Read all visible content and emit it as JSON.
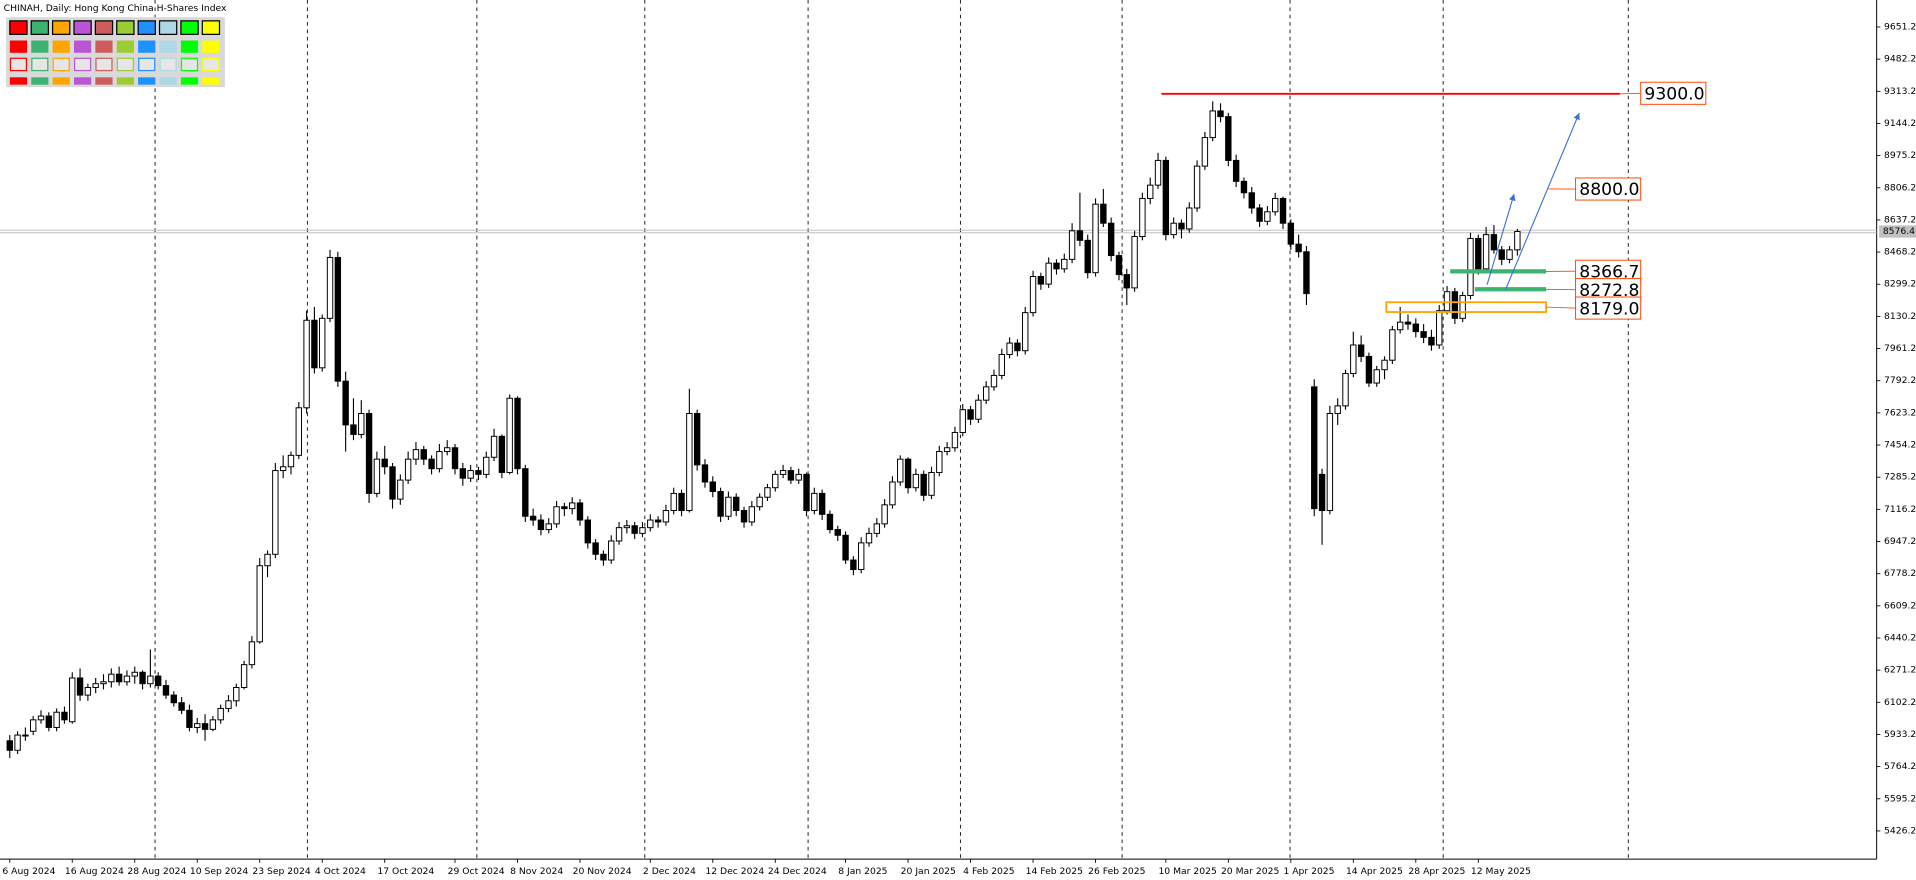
{
  "chart_data": {
    "type": "candlestick",
    "title": "CHINAH, Daily:  Hong Kong China H-Shares Index",
    "color_up": "#ffffff",
    "color_down": "#000000",
    "xlim": [
      -1.25,
      239
    ],
    "ylim": [
      5278,
      9793
    ],
    "yticks": [
      5426.2,
      5595.2,
      5764.2,
      5933.2,
      6102.2,
      6271.2,
      6440.2,
      6609.2,
      6778.2,
      6947.2,
      7116.2,
      7285.2,
      7454.2,
      7623.2,
      7792.2,
      7961.2,
      8130.2,
      8299.2,
      8468.2,
      8637.2,
      8806.2,
      8975.2,
      9144.2,
      9313.2,
      9482.2,
      9651.2
    ],
    "xticks": [
      {
        "value": 0,
        "label": "6 Aug 2024"
      },
      {
        "value": 8,
        "label": "16 Aug 2024"
      },
      {
        "value": 16,
        "label": "28 Aug 2024"
      },
      {
        "value": 24,
        "label": "10 Sep 2024"
      },
      {
        "value": 32,
        "label": "23 Sep 2024"
      },
      {
        "value": 40,
        "label": "4 Oct 2024"
      },
      {
        "value": 48,
        "label": "17 Oct 2024"
      },
      {
        "value": 57,
        "label": "29 Oct 2024"
      },
      {
        "value": 65,
        "label": "8 Nov 2024"
      },
      {
        "value": 73,
        "label": "20 Nov 2024"
      },
      {
        "value": 82,
        "label": "2 Dec 2024"
      },
      {
        "value": 90,
        "label": "12 Dec 2024"
      },
      {
        "value": 98,
        "label": "24 Dec 2024"
      },
      {
        "value": 107,
        "label": "8 Jan 2025"
      },
      {
        "value": 115,
        "label": "20 Jan 2025"
      },
      {
        "value": 123,
        "label": "4 Feb 2025"
      },
      {
        "value": 131,
        "label": "14 Feb 2025"
      },
      {
        "value": 139,
        "label": "26 Feb 2025"
      },
      {
        "value": 148,
        "label": "10 Mar 2025"
      },
      {
        "value": 156,
        "label": "20 Mar 2025"
      },
      {
        "value": 164,
        "label": "1 Apr 2025"
      },
      {
        "value": 172,
        "label": "14 Apr 2025"
      },
      {
        "value": 180,
        "label": "28 Apr 2025"
      },
      {
        "value": 188,
        "label": "12 May 2025"
      }
    ],
    "separators": [
      18.6,
      38.1,
      59.8,
      81.3,
      102.2,
      121.7,
      142.4,
      163.9,
      183.5,
      207.2
    ],
    "levels": [
      {
        "value": 9300,
        "label": "9300.0",
        "color": "#ff0000",
        "style": "line"
      },
      {
        "value": 8800,
        "label": "8800.0",
        "color": "#ff0000",
        "style": "label"
      },
      {
        "value": 8366.7,
        "label": "8366.7",
        "color": "#3cb371",
        "style": "line"
      },
      {
        "value": 8272.8,
        "label": "8272.8",
        "color": "#3cb371",
        "style": "line"
      },
      {
        "value": 8179,
        "label": "8179.0",
        "color": "#ffa500",
        "style": "band"
      }
    ],
    "ohlc": [
      [
        5900,
        5930,
        5810,
        5850
      ],
      [
        5850,
        5950,
        5830,
        5930
      ],
      [
        5930,
        5970,
        5900,
        5930
      ],
      [
        5950,
        6030,
        5930,
        6010
      ],
      [
        6010,
        6060,
        5990,
        6030
      ],
      [
        6030,
        6050,
        5950,
        5970
      ],
      [
        5970,
        6070,
        5950,
        6050
      ],
      [
        6050,
        6080,
        5990,
        6010
      ],
      [
        6000,
        6260,
        5990,
        6230
      ],
      [
        6230,
        6280,
        6110,
        6140
      ],
      [
        6140,
        6200,
        6110,
        6180
      ],
      [
        6180,
        6230,
        6150,
        6200
      ],
      [
        6200,
        6250,
        6170,
        6210
      ],
      [
        6210,
        6280,
        6180,
        6250
      ],
      [
        6250,
        6290,
        6190,
        6210
      ],
      [
        6210,
        6270,
        6190,
        6240
      ],
      [
        6240,
        6290,
        6200,
        6260
      ],
      [
        6260,
        6270,
        6170,
        6200
      ],
      [
        6200,
        6380,
        6180,
        6240
      ],
      [
        6240,
        6260,
        6170,
        6190
      ],
      [
        6190,
        6220,
        6120,
        6140
      ],
      [
        6140,
        6160,
        6080,
        6100
      ],
      [
        6100,
        6130,
        6040,
        6060
      ],
      [
        6060,
        6090,
        5950,
        5970
      ],
      [
        5970,
        6020,
        5940,
        5990
      ],
      [
        5990,
        6040,
        5900,
        5960
      ],
      [
        5960,
        6030,
        5950,
        6010
      ],
      [
        6010,
        6090,
        5990,
        6070
      ],
      [
        6070,
        6140,
        6050,
        6110
      ],
      [
        6110,
        6200,
        6080,
        6180
      ],
      [
        6180,
        6320,
        6170,
        6300
      ],
      [
        6300,
        6450,
        6280,
        6420
      ],
      [
        6420,
        6860,
        6410,
        6820
      ],
      [
        6820,
        6900,
        6760,
        6880
      ],
      [
        6880,
        7360,
        6860,
        7320
      ],
      [
        7320,
        7400,
        7280,
        7340
      ],
      [
        7340,
        7420,
        7300,
        7400
      ],
      [
        7400,
        7680,
        7380,
        7650
      ],
      [
        7650,
        8160,
        7620,
        8110
      ],
      [
        8110,
        8180,
        7830,
        7860
      ],
      [
        7860,
        8140,
        7840,
        8120
      ],
      [
        8120,
        8480,
        8100,
        8440
      ],
      [
        8440,
        8470,
        7760,
        7790
      ],
      [
        7790,
        7840,
        7420,
        7560
      ],
      [
        7560,
        7700,
        7480,
        7510
      ],
      [
        7510,
        7690,
        7490,
        7620
      ],
      [
        7620,
        7640,
        7150,
        7200
      ],
      [
        7200,
        7420,
        7180,
        7380
      ],
      [
        7380,
        7450,
        7300,
        7340
      ],
      [
        7340,
        7360,
        7120,
        7170
      ],
      [
        7170,
        7300,
        7140,
        7270
      ],
      [
        7270,
        7420,
        7250,
        7380
      ],
      [
        7380,
        7470,
        7350,
        7430
      ],
      [
        7430,
        7450,
        7350,
        7380
      ],
      [
        7380,
        7400,
        7300,
        7330
      ],
      [
        7330,
        7460,
        7310,
        7420
      ],
      [
        7420,
        7480,
        7400,
        7440
      ],
      [
        7440,
        7460,
        7300,
        7330
      ],
      [
        7330,
        7360,
        7240,
        7280
      ],
      [
        7280,
        7350,
        7260,
        7320
      ],
      [
        7320,
        7340,
        7270,
        7300
      ],
      [
        7300,
        7420,
        7280,
        7390
      ],
      [
        7390,
        7540,
        7370,
        7500
      ],
      [
        7500,
        7510,
        7280,
        7310
      ],
      [
        7310,
        7720,
        7300,
        7700
      ],
      [
        7700,
        7710,
        7300,
        7330
      ],
      [
        7330,
        7350,
        7050,
        7080
      ],
      [
        7080,
        7120,
        7030,
        7060
      ],
      [
        7060,
        7090,
        6980,
        7010
      ],
      [
        7010,
        7070,
        6990,
        7040
      ],
      [
        7040,
        7160,
        7020,
        7130
      ],
      [
        7130,
        7150,
        7080,
        7120
      ],
      [
        7120,
        7180,
        7090,
        7150
      ],
      [
        7150,
        7170,
        7030,
        7060
      ],
      [
        7060,
        7080,
        6910,
        6940
      ],
      [
        6940,
        6960,
        6850,
        6880
      ],
      [
        6880,
        6900,
        6820,
        6850
      ],
      [
        6850,
        6980,
        6830,
        6950
      ],
      [
        6950,
        7050,
        6930,
        7020
      ],
      [
        7020,
        7060,
        6990,
        7030
      ],
      [
        7030,
        7050,
        6960,
        6990
      ],
      [
        6990,
        7050,
        6970,
        7020
      ],
      [
        7020,
        7090,
        7000,
        7060
      ],
      [
        7060,
        7080,
        7020,
        7050
      ],
      [
        7050,
        7140,
        7030,
        7110
      ],
      [
        7110,
        7230,
        7090,
        7200
      ],
      [
        7200,
        7220,
        7080,
        7110
      ],
      [
        7110,
        7750,
        7100,
        7620
      ],
      [
        7620,
        7640,
        7320,
        7350
      ],
      [
        7350,
        7380,
        7230,
        7260
      ],
      [
        7260,
        7290,
        7180,
        7210
      ],
      [
        7210,
        7230,
        7050,
        7080
      ],
      [
        7080,
        7210,
        7060,
        7180
      ],
      [
        7180,
        7200,
        7080,
        7110
      ],
      [
        7110,
        7130,
        7020,
        7050
      ],
      [
        7050,
        7160,
        7030,
        7130
      ],
      [
        7130,
        7200,
        7110,
        7180
      ],
      [
        7180,
        7250,
        7160,
        7230
      ],
      [
        7230,
        7320,
        7210,
        7300
      ],
      [
        7300,
        7350,
        7280,
        7320
      ],
      [
        7320,
        7340,
        7250,
        7270
      ],
      [
        7270,
        7330,
        7250,
        7300
      ],
      [
        7300,
        7310,
        7080,
        7110
      ],
      [
        7110,
        7230,
        7090,
        7200
      ],
      [
        7200,
        7220,
        7060,
        7090
      ],
      [
        7090,
        7110,
        6990,
        7010
      ],
      [
        7010,
        7030,
        6950,
        6980
      ],
      [
        6980,
        7000,
        6830,
        6850
      ],
      [
        6850,
        6870,
        6770,
        6800
      ],
      [
        6800,
        6970,
        6780,
        6940
      ],
      [
        6940,
        7020,
        6920,
        6990
      ],
      [
        6990,
        7070,
        6970,
        7040
      ],
      [
        7040,
        7170,
        7020,
        7140
      ],
      [
        7140,
        7290,
        7120,
        7260
      ],
      [
        7260,
        7400,
        7240,
        7380
      ],
      [
        7380,
        7390,
        7200,
        7230
      ],
      [
        7230,
        7330,
        7210,
        7300
      ],
      [
        7300,
        7320,
        7160,
        7190
      ],
      [
        7190,
        7340,
        7170,
        7310
      ],
      [
        7310,
        7450,
        7290,
        7420
      ],
      [
        7420,
        7470,
        7400,
        7440
      ],
      [
        7440,
        7550,
        7420,
        7520
      ],
      [
        7520,
        7670,
        7500,
        7640
      ],
      [
        7640,
        7660,
        7560,
        7590
      ],
      [
        7590,
        7720,
        7570,
        7690
      ],
      [
        7690,
        7790,
        7670,
        7760
      ],
      [
        7760,
        7850,
        7740,
        7820
      ],
      [
        7820,
        7960,
        7800,
        7930
      ],
      [
        7930,
        8020,
        7910,
        7990
      ],
      [
        7990,
        8010,
        7920,
        7950
      ],
      [
        7950,
        8180,
        7930,
        8150
      ],
      [
        8150,
        8370,
        8130,
        8340
      ],
      [
        8340,
        8360,
        8270,
        8300
      ],
      [
        8300,
        8440,
        8280,
        8410
      ],
      [
        8410,
        8430,
        8350,
        8380
      ],
      [
        8380,
        8460,
        8360,
        8430
      ],
      [
        8430,
        8620,
        8410,
        8580
      ],
      [
        8580,
        8780,
        8500,
        8530
      ],
      [
        8530,
        8560,
        8330,
        8360
      ],
      [
        8360,
        8750,
        8340,
        8720
      ],
      [
        8720,
        8800,
        8600,
        8620
      ],
      [
        8620,
        8650,
        8420,
        8450
      ],
      [
        8450,
        8470,
        8320,
        8350
      ],
      [
        8350,
        8380,
        8190,
        8280
      ],
      [
        8280,
        8580,
        8260,
        8550
      ],
      [
        8550,
        8780,
        8530,
        8750
      ],
      [
        8750,
        8860,
        8720,
        8820
      ],
      [
        8820,
        8990,
        8800,
        8950
      ],
      [
        8950,
        8970,
        8530,
        8560
      ],
      [
        8560,
        8650,
        8540,
        8620
      ],
      [
        8620,
        8640,
        8540,
        8590
      ],
      [
        8590,
        8730,
        8570,
        8700
      ],
      [
        8700,
        8950,
        8680,
        8920
      ],
      [
        8920,
        9100,
        8900,
        9070
      ],
      [
        9070,
        9260,
        9050,
        9210
      ],
      [
        9210,
        9250,
        9150,
        9180
      ],
      [
        9180,
        9200,
        8920,
        8950
      ],
      [
        8950,
        8980,
        8810,
        8840
      ],
      [
        8840,
        8860,
        8750,
        8780
      ],
      [
        8780,
        8810,
        8670,
        8700
      ],
      [
        8700,
        8720,
        8600,
        8630
      ],
      [
        8630,
        8710,
        8610,
        8680
      ],
      [
        8680,
        8780,
        8660,
        8750
      ],
      [
        8750,
        8760,
        8590,
        8620
      ],
      [
        8620,
        8640,
        8480,
        8510
      ],
      [
        8510,
        8560,
        8440,
        8470
      ],
      [
        8470,
        8500,
        8190,
        8250
      ],
      [
        7760,
        7800,
        7080,
        7120
      ],
      [
        7300,
        7330,
        6930,
        7110
      ],
      [
        7110,
        7660,
        7090,
        7620
      ],
      [
        7620,
        7700,
        7560,
        7660
      ],
      [
        7660,
        7850,
        7640,
        7830
      ],
      [
        7830,
        8050,
        7810,
        7980
      ],
      [
        7980,
        8030,
        7890,
        7920
      ],
      [
        7920,
        7940,
        7760,
        7780
      ],
      [
        7780,
        7870,
        7760,
        7850
      ],
      [
        7850,
        7920,
        7800,
        7900
      ],
      [
        7900,
        8080,
        7880,
        8060
      ],
      [
        8060,
        8180,
        8040,
        8100
      ],
      [
        8100,
        8140,
        8060,
        8090
      ],
      [
        8090,
        8120,
        8020,
        8050
      ],
      [
        8050,
        8090,
        7990,
        8020
      ],
      [
        8020,
        8060,
        7950,
        7980
      ],
      [
        7980,
        8190,
        7960,
        8160
      ],
      [
        8160,
        8290,
        8140,
        8260
      ],
      [
        8260,
        8280,
        8090,
        8120
      ],
      [
        8120,
        8260,
        8100,
        8240
      ],
      [
        8240,
        8570,
        8220,
        8540
      ],
      [
        8540,
        8560,
        8350,
        8380
      ],
      [
        8380,
        8600,
        8360,
        8560
      ],
      [
        8560,
        8610,
        8460,
        8480
      ],
      [
        8480,
        8500,
        8400,
        8430
      ],
      [
        8430,
        8500,
        8410,
        8480
      ],
      [
        8480,
        8590,
        8450,
        8576.4
      ]
    ]
  }
}
